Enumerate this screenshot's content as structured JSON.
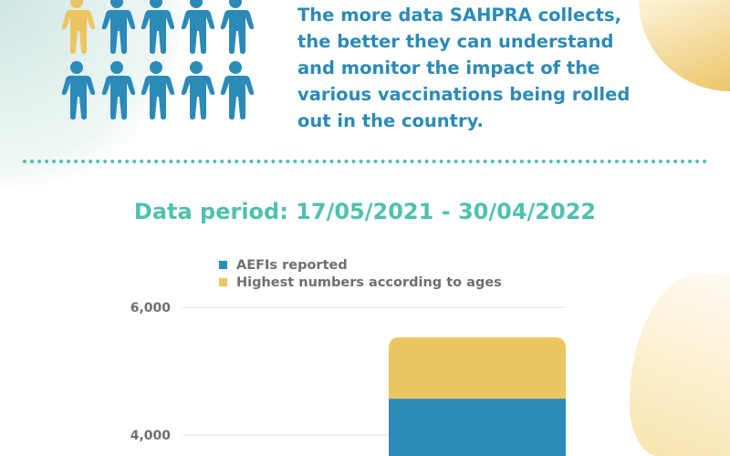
{
  "intro_text": "The more data SAHPRA collects, the better they can understand and monitor the impact of the various vaccinations being rolled out in the country.",
  "intro_lines": [
    "The more data SAHPRA collects,",
    "the better they can understand",
    "and monitor the impact of the",
    "various vaccinations being rolled",
    "out in the country."
  ],
  "people": {
    "total": 10,
    "highlighted": 1,
    "highlight_color": "#ecc560",
    "base_color": "#2b8ab8"
  },
  "data_period": "Data period: 17/05/2021 - 30/04/2022",
  "colors": {
    "blue": "#2b8ab8",
    "yellow": "#ecc560",
    "teal": "#4fc0b0"
  },
  "chart_data": {
    "type": "bar",
    "stacked": true,
    "legend": [
      "AEFIs reported",
      "Highest numbers according to ages"
    ],
    "legend_position": "top",
    "series": [
      {
        "name": "AEFIs reported",
        "values": [
          4570
        ],
        "color": "#2b8ab8"
      },
      {
        "name": "Highest numbers according to ages",
        "values": [
          960
        ],
        "color": "#ecc560"
      }
    ],
    "yticks": [
      "6,000",
      "4,000"
    ],
    "ytick_values": [
      6000,
      4000
    ],
    "grid": true
  }
}
